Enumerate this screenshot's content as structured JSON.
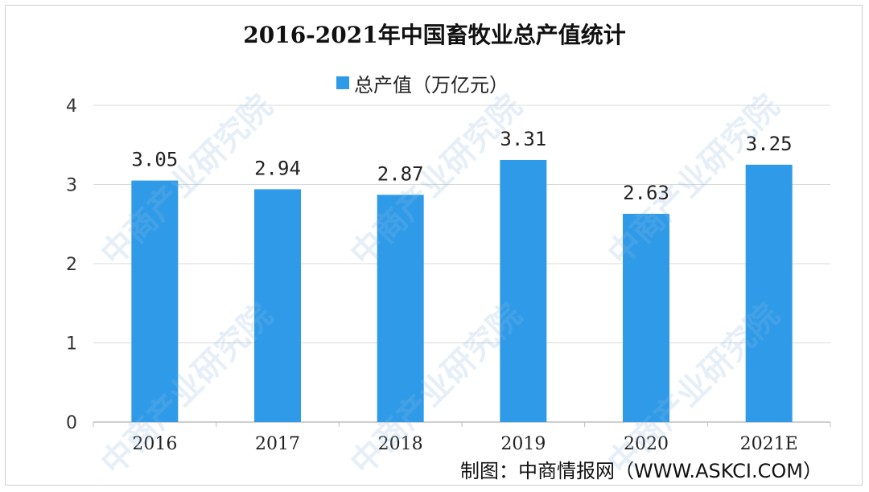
{
  "chart_data": {
    "type": "bar",
    "title": "2016-2021年中国畜牧业总产值统计",
    "categories": [
      "2016",
      "2017",
      "2018",
      "2019",
      "2020",
      "2021E"
    ],
    "series": [
      {
        "name": "总产值（万亿元）",
        "values": [
          3.05,
          2.94,
          2.87,
          3.31,
          2.63,
          3.25
        ],
        "color": "#2f9be8"
      }
    ],
    "data_labels": [
      "3.05",
      "2.94",
      "2.87",
      "3.31",
      "2.63",
      "3.25"
    ],
    "yticks": [
      "0",
      "1",
      "2",
      "3",
      "4"
    ],
    "ylim": [
      0,
      4
    ],
    "grid": true,
    "legend_position": "top-center"
  },
  "source_text": "制图：中商情报网（WWW.ASKCI.COM）",
  "watermark_text": "中商产业研究院",
  "colors": {
    "bar": "#2f9be8",
    "grid": "#d9d9d9",
    "axis": "#bfbfbf"
  }
}
